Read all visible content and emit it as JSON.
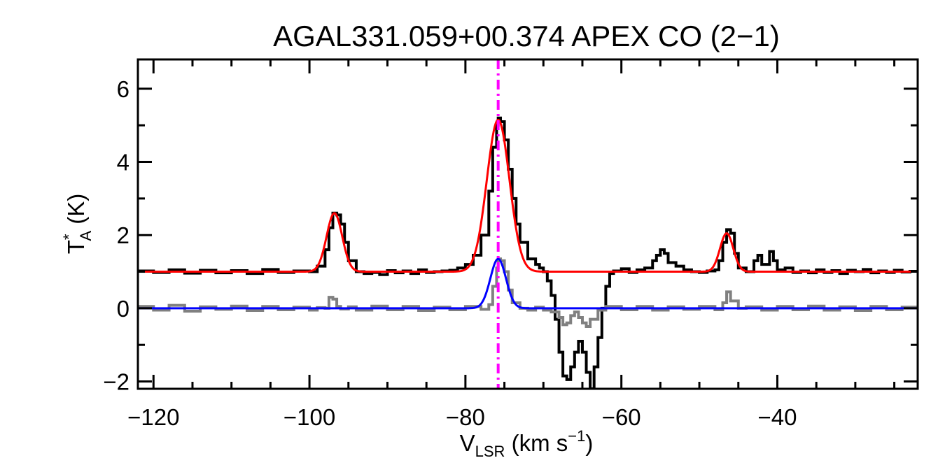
{
  "chart_data": {
    "type": "line",
    "title": "AGAL331.059+00.374  APEX CO (2−1)",
    "xlabel": {
      "main": "V",
      "sub": "LSR",
      "units": " (km s",
      "sup": "−1",
      "close": ")"
    },
    "ylabel": {
      "main": "T",
      "sup": "*",
      "sub": "A",
      "units": " (K)"
    },
    "xlim": [
      -122,
      -22
    ],
    "ylim": [
      -2.2,
      6.8
    ],
    "x_ticks": [
      -120,
      -100,
      -80,
      -60,
      -40
    ],
    "x_tick_labels": [
      "−120",
      "−100",
      "−80",
      "−60",
      "−40"
    ],
    "y_ticks": [
      -2,
      0,
      2,
      4,
      6
    ],
    "y_tick_labels": [
      "−2",
      "0",
      "2",
      "4",
      "6"
    ],
    "vline": {
      "x": -75.8,
      "color": "#ff00ff",
      "style": "dash-dot"
    },
    "series": [
      {
        "kind": "observed spectrum (offset)",
        "color": "#000000",
        "step": true,
        "points": [
          [
            -122,
            1.02
          ],
          [
            -120,
            0.98
          ],
          [
            -118,
            1.05
          ],
          [
            -116,
            0.96
          ],
          [
            -114,
            1.04
          ],
          [
            -112,
            0.97
          ],
          [
            -110,
            1.03
          ],
          [
            -108,
            0.95
          ],
          [
            -106,
            1.06
          ],
          [
            -104,
            0.98
          ],
          [
            -102,
            1.02
          ],
          [
            -100,
            1.0
          ],
          [
            -99,
            1.15
          ],
          [
            -98,
            1.6
          ],
          [
            -97.5,
            2.2
          ],
          [
            -97,
            2.6
          ],
          [
            -96.5,
            2.55
          ],
          [
            -96,
            2.3
          ],
          [
            -95.5,
            1.8
          ],
          [
            -95,
            1.3
          ],
          [
            -94,
            1.0
          ],
          [
            -93,
            0.95
          ],
          [
            -92,
            0.98
          ],
          [
            -91,
            0.92
          ],
          [
            -90,
            1.03
          ],
          [
            -89,
            0.97
          ],
          [
            -88,
            1.02
          ],
          [
            -87,
            0.95
          ],
          [
            -86,
            1.05
          ],
          [
            -85,
            0.98
          ],
          [
            -84,
            1.0
          ],
          [
            -83,
            1.02
          ],
          [
            -82,
            1.04
          ],
          [
            -81,
            1.1
          ],
          [
            -80,
            1.2
          ],
          [
            -79,
            1.45
          ],
          [
            -78,
            2.0
          ],
          [
            -77,
            3.2
          ],
          [
            -76.5,
            4.4
          ],
          [
            -76,
            5.0
          ],
          [
            -75.8,
            5.2
          ],
          [
            -75.5,
            5.1
          ],
          [
            -75,
            4.6
          ],
          [
            -74.5,
            3.8
          ],
          [
            -74,
            3.0
          ],
          [
            -73.5,
            2.3
          ],
          [
            -73,
            1.8
          ],
          [
            -72,
            1.35
          ],
          [
            -71,
            1.2
          ],
          [
            -70.5,
            1.1
          ],
          [
            -70,
            1.0
          ],
          [
            -69.5,
            0.75
          ],
          [
            -69,
            0.35
          ],
          [
            -68.5,
            -0.3
          ],
          [
            -68,
            -1.2
          ],
          [
            -67.5,
            -1.85
          ],
          [
            -67,
            -1.95
          ],
          [
            -66.5,
            -1.6
          ],
          [
            -66,
            -1.2
          ],
          [
            -65.5,
            -0.9
          ],
          [
            -65,
            -1.2
          ],
          [
            -64.5,
            -1.75
          ],
          [
            -64,
            -2.2
          ],
          [
            -63.5,
            -1.6
          ],
          [
            -63,
            -0.8
          ],
          [
            -62.5,
            0.0
          ],
          [
            -62,
            0.6
          ],
          [
            -61.5,
            0.95
          ],
          [
            -61,
            1.02
          ],
          [
            -60,
            1.08
          ],
          [
            -59,
            0.98
          ],
          [
            -58,
            1.05
          ],
          [
            -57,
            1.1
          ],
          [
            -56,
            1.3
          ],
          [
            -55.5,
            1.45
          ],
          [
            -55,
            1.6
          ],
          [
            -54.5,
            1.5
          ],
          [
            -54,
            1.25
          ],
          [
            -53,
            1.15
          ],
          [
            -52,
            1.05
          ],
          [
            -51,
            1.0
          ],
          [
            -50,
            0.98
          ],
          [
            -49,
            1.02
          ],
          [
            -48,
            1.05
          ],
          [
            -47.5,
            1.3
          ],
          [
            -47,
            1.8
          ],
          [
            -46.5,
            2.15
          ],
          [
            -46,
            2.05
          ],
          [
            -45.5,
            1.5
          ],
          [
            -45,
            1.1
          ],
          [
            -44,
            1.0
          ],
          [
            -43,
            1.3
          ],
          [
            -42.5,
            1.45
          ],
          [
            -42,
            1.2
          ],
          [
            -41,
            1.55
          ],
          [
            -40.5,
            1.3
          ],
          [
            -40,
            1.05
          ],
          [
            -39,
            1.1
          ],
          [
            -38,
            0.98
          ],
          [
            -37,
            1.02
          ],
          [
            -36,
            0.97
          ],
          [
            -35,
            1.05
          ],
          [
            -34,
            0.98
          ],
          [
            -33,
            1.03
          ],
          [
            -32,
            0.95
          ],
          [
            -31,
            1.04
          ],
          [
            -30,
            1.0
          ],
          [
            -29,
            1.06
          ],
          [
            -28,
            0.97
          ],
          [
            -27,
            1.02
          ],
          [
            -26,
            0.98
          ],
          [
            -25,
            1.04
          ],
          [
            -24,
            0.99
          ],
          [
            -23,
            1.01
          ],
          [
            -22,
            1.0
          ]
        ]
      },
      {
        "kind": "observed spectrum",
        "color": "#808080",
        "step": true,
        "points": [
          [
            -122,
            0.05
          ],
          [
            -120,
            -0.05
          ],
          [
            -118,
            0.08
          ],
          [
            -116,
            -0.08
          ],
          [
            -114,
            0.04
          ],
          [
            -112,
            -0.03
          ],
          [
            -110,
            0.06
          ],
          [
            -108,
            -0.06
          ],
          [
            -106,
            0.05
          ],
          [
            -104,
            -0.04
          ],
          [
            -102,
            0.03
          ],
          [
            -100,
            -0.05
          ],
          [
            -99,
            0.02
          ],
          [
            -98,
            0.0
          ],
          [
            -97.5,
            0.3
          ],
          [
            -97,
            0.25
          ],
          [
            -96.5,
            0.05
          ],
          [
            -96,
            -0.02
          ],
          [
            -95,
            0.04
          ],
          [
            -94,
            -0.05
          ],
          [
            -92,
            0.06
          ],
          [
            -90,
            -0.04
          ],
          [
            -88,
            0.05
          ],
          [
            -86,
            -0.06
          ],
          [
            -84,
            0.03
          ],
          [
            -82,
            -0.04
          ],
          [
            -80,
            0.05
          ],
          [
            -78,
            -0.03
          ],
          [
            -77,
            0.1
          ],
          [
            -76.5,
            0.6
          ],
          [
            -76,
            1.1
          ],
          [
            -75.8,
            1.35
          ],
          [
            -75.5,
            1.3
          ],
          [
            -75,
            1.0
          ],
          [
            -74.5,
            0.5
          ],
          [
            -74,
            0.15
          ],
          [
            -73,
            0.0
          ],
          [
            -72,
            -0.05
          ],
          [
            -71,
            0.03
          ],
          [
            -70,
            -0.05
          ],
          [
            -69,
            -0.1
          ],
          [
            -68,
            -0.25
          ],
          [
            -67.5,
            -0.45
          ],
          [
            -67,
            -0.4
          ],
          [
            -66.5,
            -0.2
          ],
          [
            -66,
            -0.1
          ],
          [
            -65.5,
            -0.25
          ],
          [
            -65,
            -0.4
          ],
          [
            -64.5,
            -0.5
          ],
          [
            -64,
            -0.3
          ],
          [
            -63,
            -0.05
          ],
          [
            -62,
            0.05
          ],
          [
            -60,
            -0.04
          ],
          [
            -58,
            0.05
          ],
          [
            -56,
            -0.05
          ],
          [
            -54,
            0.04
          ],
          [
            -52,
            -0.03
          ],
          [
            -50,
            0.05
          ],
          [
            -48,
            -0.04
          ],
          [
            -47,
            0.15
          ],
          [
            -46.5,
            0.45
          ],
          [
            -46,
            0.2
          ],
          [
            -45,
            0.0
          ],
          [
            -44,
            0.04
          ],
          [
            -42,
            -0.05
          ],
          [
            -40,
            0.05
          ],
          [
            -38,
            -0.04
          ],
          [
            -36,
            0.06
          ],
          [
            -34,
            -0.05
          ],
          [
            -32,
            0.04
          ],
          [
            -30,
            -0.06
          ],
          [
            -28,
            0.05
          ],
          [
            -26,
            -0.04
          ],
          [
            -24,
            0.03
          ],
          [
            -22,
            0.0
          ]
        ]
      },
      {
        "kind": "gaussian fit (offset)",
        "color": "#ff0000",
        "step": false,
        "baseline": 1.0,
        "components": [
          {
            "center": -96.8,
            "amp": 1.6,
            "sigma": 1.0
          },
          {
            "center": -75.8,
            "amp": 4.15,
            "sigma": 1.45
          },
          {
            "center": -46.5,
            "amp": 1.05,
            "sigma": 0.85
          }
        ]
      },
      {
        "kind": "gaussian fit",
        "color": "#0000ff",
        "step": false,
        "baseline": 0.0,
        "components": [
          {
            "center": -75.8,
            "amp": 1.35,
            "sigma": 1.0
          }
        ]
      }
    ]
  }
}
